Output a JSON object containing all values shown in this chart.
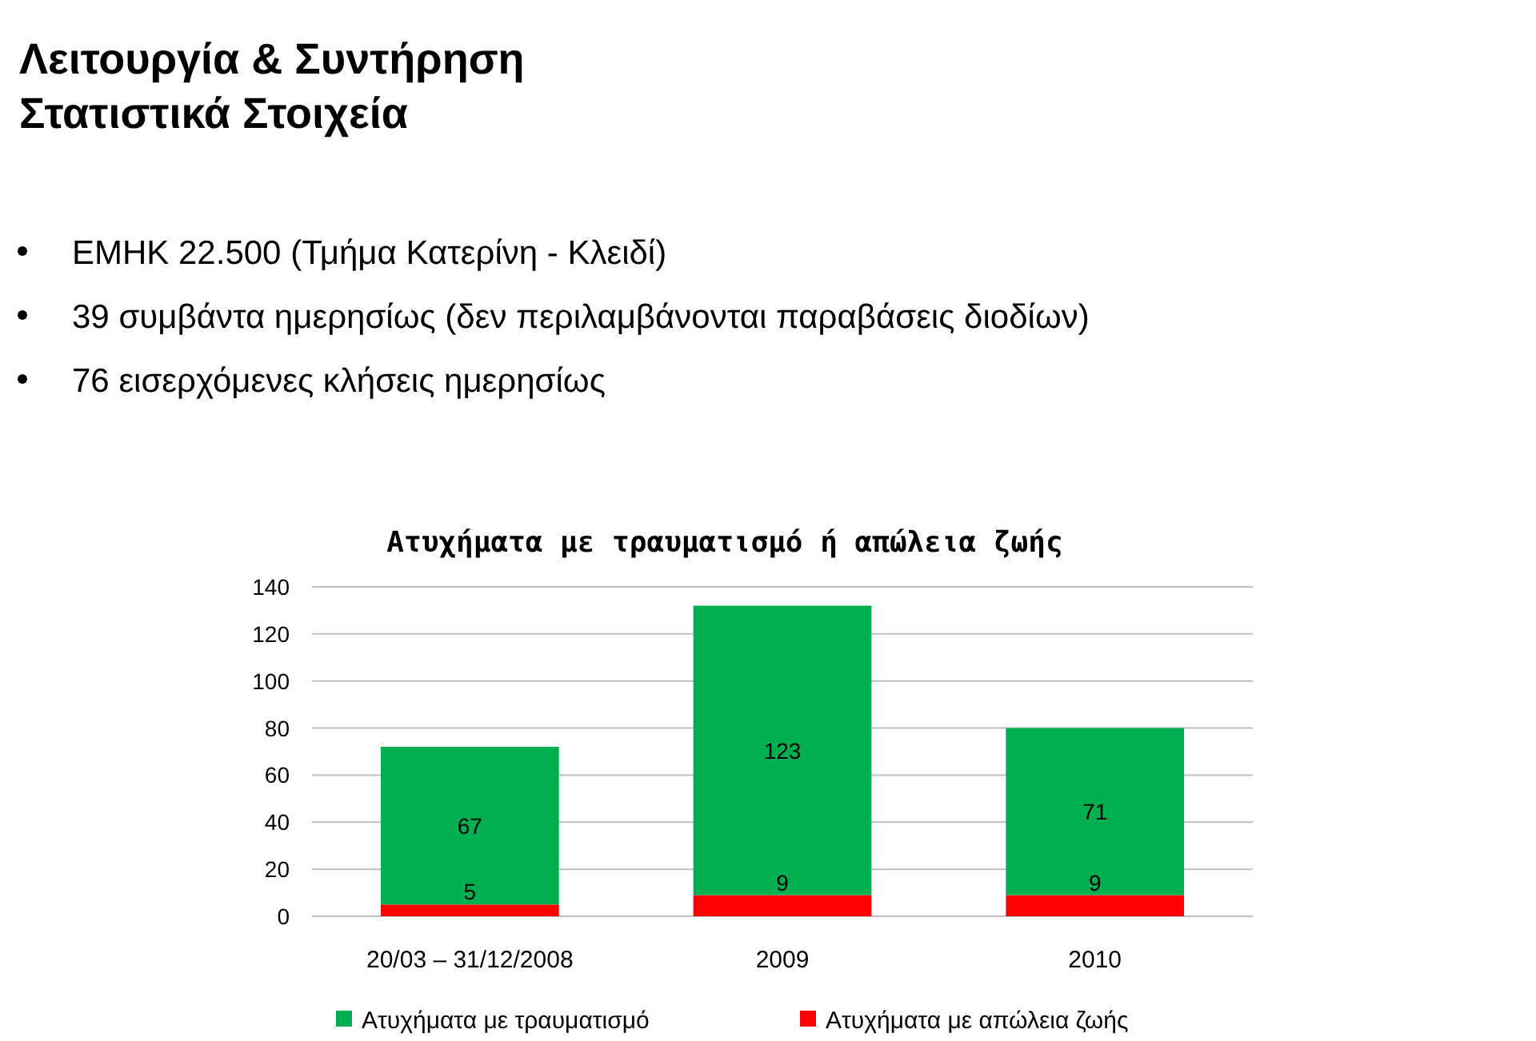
{
  "chart_data": {
    "type": "bar",
    "title": "Ατυχήματα με τραυματισμό ή απώλεια ζωής",
    "annotations": [
      "Λειτουργία & Συντήρηση",
      "Στατιστικά Στοιχεία",
      "ΕΜΗΚ 22.500 (Τμήμα Κατερίνη - Κλειδί)",
      "39 συμβάντα ημερησίως (δεν περιλαμβάνονται παραβάσεις διοδίων)",
      "76 εισερχόμενες κλήσεις ημερησίως"
    ],
    "categories": [
      "20/03 – 31/12/2008",
      "2009",
      "2010"
    ],
    "stacked": true,
    "series": [
      {
        "name": "Ατυχήματα με απώλεια ζωής",
        "color": "#ff0000",
        "values": [
          5,
          9,
          9
        ]
      },
      {
        "name": "Ατυχήματα με τραυματισμό",
        "color": "#00b050",
        "values": [
          67,
          123,
          71
        ]
      }
    ],
    "ylim": [
      0,
      140
    ],
    "yticks": [
      0,
      20,
      40,
      60,
      80,
      100,
      120,
      140
    ],
    "grid": "y",
    "data_labels": true,
    "legend": "bottom"
  }
}
